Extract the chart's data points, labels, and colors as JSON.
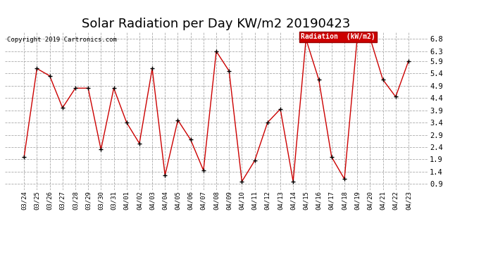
{
  "title": "Solar Radiation per Day KW/m2 20190423",
  "copyright": "Copyright 2019 Cartronics.com",
  "legend_label": "Radiation  (kW/m2)",
  "dates": [
    "03/24",
    "03/25",
    "03/26",
    "03/27",
    "03/28",
    "03/29",
    "03/30",
    "03/31",
    "04/01",
    "04/02",
    "04/03",
    "04/04",
    "04/05",
    "04/06",
    "04/07",
    "04/08",
    "04/09",
    "04/10",
    "04/11",
    "04/12",
    "04/13",
    "04/14",
    "04/15",
    "04/16",
    "04/17",
    "04/18",
    "04/19",
    "04/20",
    "04/21",
    "04/22",
    "04/23"
  ],
  "values": [
    2.0,
    5.6,
    5.3,
    4.0,
    4.8,
    4.8,
    2.3,
    4.8,
    3.4,
    2.55,
    5.6,
    1.25,
    3.5,
    2.7,
    1.45,
    6.3,
    5.5,
    1.0,
    1.85,
    3.4,
    3.95,
    1.0,
    6.8,
    5.15,
    2.0,
    1.1,
    6.85,
    6.85,
    5.15,
    4.45,
    5.9
  ],
  "line_color": "#cc0000",
  "marker_color": "#000000",
  "bg_color": "#ffffff",
  "grid_color": "#aaaaaa",
  "ylim": [
    0.65,
    7.1
  ],
  "yticks": [
    0.9,
    1.4,
    1.9,
    2.4,
    2.9,
    3.4,
    3.9,
    4.4,
    4.9,
    5.4,
    5.9,
    6.3,
    6.8
  ],
  "title_fontsize": 13,
  "legend_bg": "#cc0000",
  "legend_text_color": "#ffffff"
}
